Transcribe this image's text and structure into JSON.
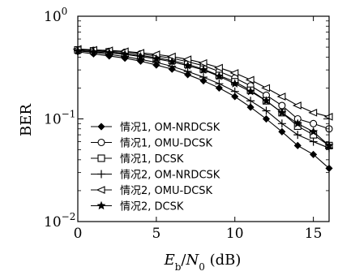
{
  "chart_data": {
    "type": "line",
    "yscale": "log",
    "xlabel_parts": {
      "base": "E",
      "sub1": "b",
      "slash": "/",
      "n": "N",
      "sub2": "0",
      "unit": " (dB)"
    },
    "ylabel": "BER",
    "xlim": [
      0,
      16
    ],
    "ylim": [
      0.01,
      1
    ],
    "x_ticks": [
      "0",
      "5",
      "10",
      "15"
    ],
    "x_tick_values": [
      0,
      5,
      10,
      15
    ],
    "y_ticks": [
      {
        "value": 1,
        "base": "10",
        "exp": "0"
      },
      {
        "value": 0.1,
        "base": "10",
        "exp": "−1"
      },
      {
        "value": 0.01,
        "base": "10",
        "exp": "−2"
      }
    ],
    "legend_position": "lower-left",
    "x": [
      0,
      1,
      2,
      3,
      4,
      5,
      6,
      7,
      8,
      9,
      10,
      11,
      12,
      13,
      14,
      15,
      16
    ],
    "series": [
      {
        "name": "情况1, OM-NRDCSK",
        "marker": "diamond",
        "values": [
          0.45,
          0.43,
          0.41,
          0.39,
          0.365,
          0.335,
          0.305,
          0.27,
          0.235,
          0.2,
          0.165,
          0.13,
          0.1,
          0.075,
          0.055,
          0.045,
          0.033
        ]
      },
      {
        "name": "情况1, OMU-DCSK",
        "marker": "circle",
        "values": [
          0.47,
          0.465,
          0.455,
          0.445,
          0.43,
          0.41,
          0.39,
          0.36,
          0.33,
          0.29,
          0.25,
          0.21,
          0.17,
          0.135,
          0.1,
          0.09,
          0.08
        ]
      },
      {
        "name": "情况1, DCSK",
        "marker": "square",
        "values": [
          0.47,
          0.46,
          0.45,
          0.43,
          0.415,
          0.395,
          0.37,
          0.34,
          0.305,
          0.265,
          0.23,
          0.19,
          0.15,
          0.115,
          0.085,
          0.07,
          0.055
        ]
      },
      {
        "name": "情况2, OM-NRDCSK",
        "marker": "plus",
        "values": [
          0.46,
          0.445,
          0.425,
          0.405,
          0.38,
          0.355,
          0.325,
          0.29,
          0.255,
          0.22,
          0.185,
          0.15,
          0.12,
          0.09,
          0.07,
          0.06,
          0.052
        ]
      },
      {
        "name": "情况2, OMU-DCSK",
        "marker": "triangle-left",
        "values": [
          0.48,
          0.47,
          0.465,
          0.455,
          0.44,
          0.425,
          0.405,
          0.38,
          0.35,
          0.315,
          0.28,
          0.24,
          0.2,
          0.165,
          0.135,
          0.115,
          0.105
        ]
      },
      {
        "name": "情况2, DCSK",
        "marker": "star",
        "values": [
          0.46,
          0.45,
          0.44,
          0.425,
          0.405,
          0.385,
          0.36,
          0.33,
          0.3,
          0.26,
          0.22,
          0.185,
          0.15,
          0.115,
          0.09,
          0.075,
          0.055
        ]
      }
    ]
  }
}
